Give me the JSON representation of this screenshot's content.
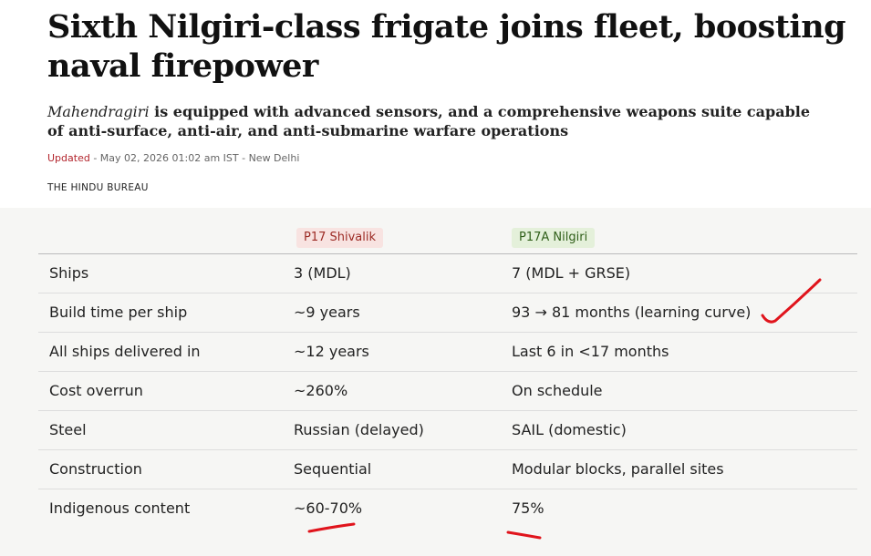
{
  "header": {
    "title": "Sixth Nilgiri-class frigate joins fleet, boosting naval firepower",
    "subtitle_italic": "Mahendragiri",
    "subtitle_rest": " is equipped with advanced sensors, and a comprehensive weapons suite capable of anti-surface, anti-air, and anti-submarine warfare operations",
    "updated_label": "Updated",
    "updated_meta": " - May 02, 2026 01:02 am IST - New Delhi",
    "byline": "THE HINDU BUREAU"
  },
  "table": {
    "columns": [
      "P17 Shivalik",
      "P17A Nilgiri"
    ],
    "rows": [
      [
        "Ships",
        "3 (MDL)",
        "7 (MDL + GRSE)"
      ],
      [
        "Build time per ship",
        "~9 years",
        "93 → 81 months (learning curve)"
      ],
      [
        "All ships delivered in",
        "~12 years",
        "Last 6 in <17 months"
      ],
      [
        "Cost overrun",
        "~260%",
        "On schedule"
      ],
      [
        "Steel",
        "Russian (delayed)",
        "SAIL (domestic)"
      ],
      [
        "Construction",
        "Sequential",
        "Modular blocks, parallel sites"
      ],
      [
        "Indigenous content",
        "~60-70%",
        "75%"
      ]
    ]
  }
}
